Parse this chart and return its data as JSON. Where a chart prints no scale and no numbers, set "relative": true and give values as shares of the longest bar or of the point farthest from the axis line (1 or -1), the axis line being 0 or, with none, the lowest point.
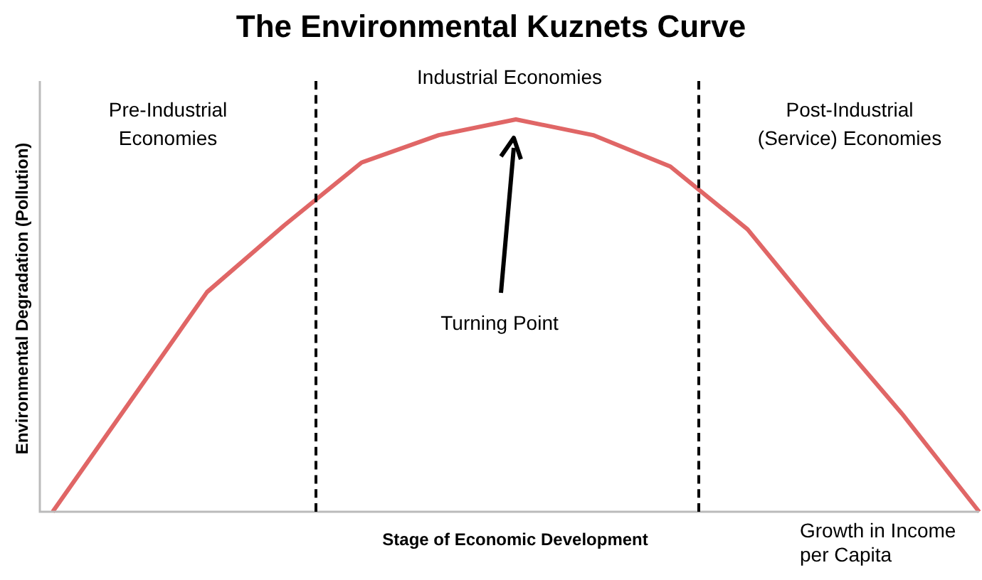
{
  "chart_data": {
    "type": "line",
    "title": "The Environmental Kuznets Curve",
    "xlabel": "Stage of Economic Development",
    "ylabel": "Environmental Degradation (Pollution)",
    "relative": true,
    "categories": [
      null,
      null,
      null,
      null,
      null,
      null,
      null,
      null,
      null,
      null,
      null,
      null,
      null
    ],
    "series": [
      {
        "color": "#e06666",
        "values": [
          0,
          0.28,
          0.56,
          0.73,
          0.89,
          0.96,
          1,
          0.96,
          0.88,
          0.72,
          0.48,
          0.25,
          0
        ]
      }
    ],
    "annotations": [
      "Pre-Industrial Economies",
      "Industrial Economies",
      "Post-Industrial (Service) Economies",
      "Turning Point",
      "Growth in Income per Capita"
    ],
    "marker": "none",
    "line_style": "solid",
    "legend": false,
    "tick_labels": false
  }
}
